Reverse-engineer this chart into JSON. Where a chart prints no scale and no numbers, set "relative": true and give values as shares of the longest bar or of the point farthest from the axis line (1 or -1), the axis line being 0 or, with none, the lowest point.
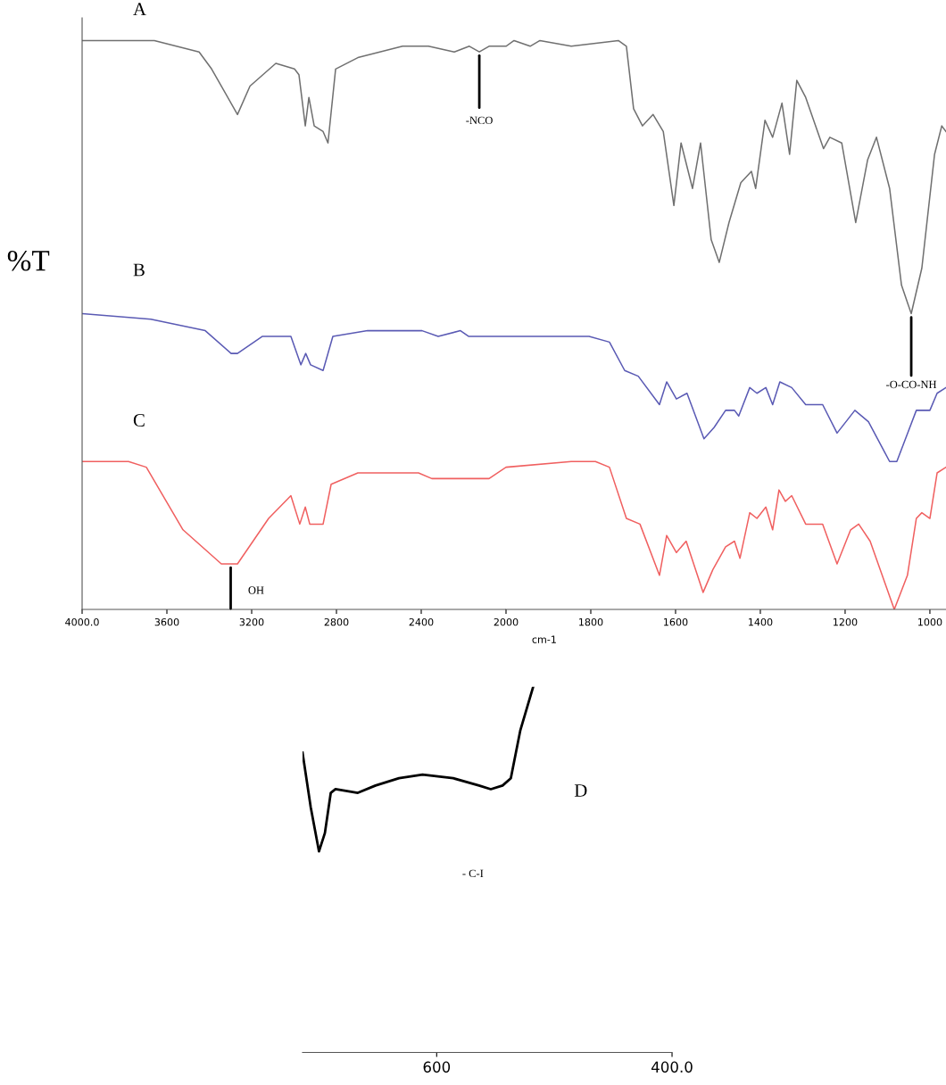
{
  "chart_data": [
    {
      "type": "line",
      "relative": true,
      "ylabel": "%T",
      "tick_labels": "x",
      "xlim": [
        4000,
        2000
      ],
      "xticks": [
        {
          "value": 4000,
          "label": "4000.0"
        },
        3600,
        3200,
        2800,
        2400,
        2000
      ],
      "series": [
        {
          "name": "A",
          "color": "#707070",
          "x": [
            4000,
            3659,
            3448,
            3389,
            3267,
            3208,
            3086,
            2998,
            2977,
            2947,
            2930,
            2905,
            2863,
            2840,
            2804,
            2699,
            2488,
            2366,
            2244,
            2173,
            2126,
            2080,
            2000
          ],
          "values": [
            1.0,
            1.0,
            0.98,
            0.95,
            0.87,
            0.92,
            0.96,
            0.95,
            0.94,
            0.85,
            0.9,
            0.85,
            0.84,
            0.82,
            0.95,
            0.97,
            0.99,
            0.99,
            0.98,
            0.99,
            0.98,
            0.99,
            0.99
          ]
        },
        {
          "name": "B",
          "color": "#5a5ab4",
          "x": [
            4000,
            3676,
            3419,
            3297,
            3267,
            3149,
            3015,
            2968,
            2945,
            2922,
            2863,
            2817,
            2653,
            2396,
            2320,
            2215,
            2177,
            2000
          ],
          "values": [
            0.52,
            0.51,
            0.49,
            0.45,
            0.45,
            0.48,
            0.48,
            0.43,
            0.45,
            0.43,
            0.42,
            0.48,
            0.49,
            0.49,
            0.48,
            0.49,
            0.48,
            0.48
          ]
        },
        {
          "name": "C",
          "color": "#f06060",
          "x": [
            4000,
            3781,
            3697,
            3524,
            3343,
            3299,
            3267,
            3120,
            3015,
            2973,
            2947,
            2926,
            2863,
            2825,
            2699,
            2413,
            2350,
            2202,
            2164,
            2080,
            2000
          ],
          "values": [
            0.26,
            0.26,
            0.25,
            0.14,
            0.08,
            0.08,
            0.08,
            0.16,
            0.2,
            0.15,
            0.18,
            0.15,
            0.15,
            0.22,
            0.24,
            0.24,
            0.23,
            0.23,
            0.23,
            0.23,
            0.25
          ]
        }
      ],
      "annotations": [
        {
          "text": "-NCO",
          "x": 2126,
          "y": 0.98
        },
        {
          "text": "OH",
          "x": 3299,
          "y": 0.08
        }
      ]
    },
    {
      "type": "line",
      "relative": true,
      "xlabel": "cm-1",
      "tick_labels": "x",
      "xlim": [
        2000,
        962
      ],
      "xticks": [
        1800,
        1600,
        1400,
        1200,
        1000
      ],
      "series": [
        {
          "color": "#707070",
          "x": [
            2000,
            1981,
            1943,
            1920,
            1846,
            1735,
            1716,
            1699,
            1678,
            1653,
            1629,
            1604,
            1587,
            1560,
            1541,
            1516,
            1497,
            1474,
            1446,
            1421,
            1411,
            1389,
            1371,
            1349,
            1331,
            1314,
            1293,
            1251,
            1236,
            1208,
            1175,
            1147,
            1126,
            1095,
            1067,
            1044,
            1019,
            989,
            972,
            962
          ],
          "values": [
            0.99,
            1.0,
            0.99,
            1.0,
            0.99,
            1.0,
            0.99,
            0.88,
            0.85,
            0.87,
            0.84,
            0.71,
            0.82,
            0.74,
            0.82,
            0.65,
            0.61,
            0.68,
            0.75,
            0.77,
            0.74,
            0.86,
            0.83,
            0.89,
            0.8,
            0.93,
            0.9,
            0.81,
            0.83,
            0.82,
            0.68,
            0.79,
            0.83,
            0.74,
            0.57,
            0.52,
            0.6,
            0.8,
            0.85,
            0.84
          ]
        },
        {
          "color": "#5a5ab4",
          "x": [
            2000,
            1973,
            1846,
            1804,
            1756,
            1720,
            1688,
            1638,
            1621,
            1598,
            1573,
            1533,
            1509,
            1482,
            1461,
            1451,
            1425,
            1408,
            1387,
            1371,
            1354,
            1326,
            1293,
            1253,
            1219,
            1177,
            1145,
            1095,
            1078,
            1032,
            1019,
            1000,
            983,
            962
          ],
          "values": [
            0.48,
            0.48,
            0.48,
            0.48,
            0.47,
            0.42,
            0.41,
            0.36,
            0.4,
            0.37,
            0.38,
            0.3,
            0.32,
            0.35,
            0.35,
            0.34,
            0.39,
            0.38,
            0.39,
            0.36,
            0.4,
            0.39,
            0.36,
            0.36,
            0.31,
            0.35,
            0.33,
            0.26,
            0.26,
            0.35,
            0.35,
            0.35,
            0.38,
            0.39
          ]
        },
        {
          "color": "#f06060",
          "x": [
            2000,
            1846,
            1789,
            1756,
            1716,
            1684,
            1638,
            1621,
            1598,
            1575,
            1535,
            1512,
            1482,
            1461,
            1448,
            1425,
            1408,
            1387,
            1371,
            1356,
            1341,
            1326,
            1293,
            1253,
            1219,
            1187,
            1168,
            1141,
            1084,
            1053,
            1032,
            1019,
            1000,
            983,
            962
          ],
          "values": [
            0.25,
            0.26,
            0.26,
            0.25,
            0.16,
            0.15,
            0.06,
            0.13,
            0.1,
            0.12,
            0.03,
            0.07,
            0.11,
            0.12,
            0.09,
            0.17,
            0.16,
            0.18,
            0.14,
            0.21,
            0.19,
            0.2,
            0.15,
            0.15,
            0.08,
            0.14,
            0.15,
            0.12,
            0.0,
            0.06,
            0.16,
            0.17,
            0.16,
            0.24,
            0.25
          ]
        }
      ],
      "annotations": [
        {
          "text": "-O-CO-NH",
          "x": 1044,
          "y": 0.52
        }
      ]
    },
    {
      "type": "line",
      "relative": true,
      "tick_labels": "x",
      "xlim": [
        714,
        400
      ],
      "xticks": [
        600,
        {
          "value": 400,
          "label": "400.0"
        }
      ],
      "series": [
        {
          "name": "D",
          "color": "#000000",
          "x": [
            714,
            707,
            700,
            695,
            690,
            686,
            667,
            652,
            632,
            612,
            586,
            564,
            554,
            544,
            537,
            529,
            518
          ],
          "values": [
            0.82,
            0.67,
            0.55,
            0.6,
            0.71,
            0.72,
            0.71,
            0.73,
            0.75,
            0.76,
            0.75,
            0.73,
            0.72,
            0.73,
            0.75,
            0.88,
            1.0
          ]
        }
      ],
      "annotations": [
        "- C-I"
      ]
    }
  ]
}
